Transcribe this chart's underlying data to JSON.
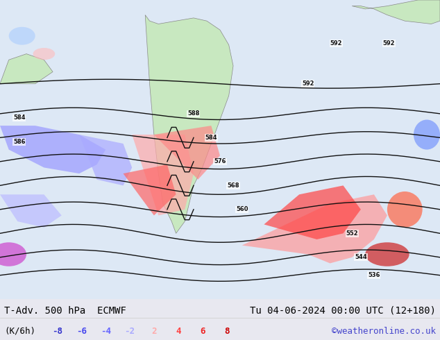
{
  "title_left": "T-Adv. 500 hPa  ECMWF",
  "title_right": "Tu 04-06-2024 00:00 UTC (12+180)",
  "unit_label": "(K/6h)",
  "legend_values": [
    "-8",
    "-6",
    "-4",
    "-2",
    "2",
    "4",
    "6",
    "8"
  ],
  "legend_colors": [
    "#3333cc",
    "#4444ee",
    "#6666ff",
    "#aaaaff",
    "#ffaaaa",
    "#ff4444",
    "#ee2222",
    "#cc0000"
  ],
  "watermark": "©weatheronline.co.uk",
  "watermark_color": "#4444cc",
  "bg_color": "#e8e8f0",
  "map_bg": "#e8eef8",
  "land_color": "#c8e8c0",
  "title_fontsize": 10,
  "legend_fontsize": 9,
  "figsize": [
    6.34,
    4.9
  ],
  "dpi": 100
}
